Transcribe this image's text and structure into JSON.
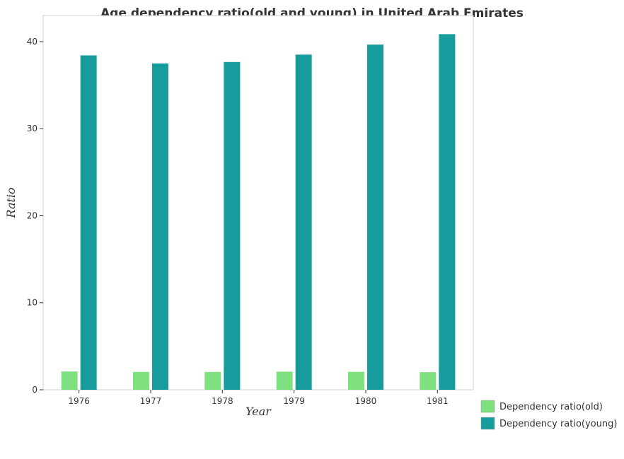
{
  "chart_data": {
    "type": "bar",
    "title": "Age dependency ratio(old and young) in United Arab Emirates",
    "xlabel": "Year",
    "ylabel": "Ratio",
    "categories": [
      "1976",
      "1977",
      "1978",
      "1979",
      "1980",
      "1981"
    ],
    "ylim": [
      0,
      43
    ],
    "yticks": [
      "0",
      "10",
      "20",
      "30",
      "40"
    ],
    "grid": false,
    "legend_position": "bottom-right",
    "series": [
      {
        "name": "Dependency ratio(old)",
        "color": "#7fe07f",
        "values": [
          2.1,
          2.05,
          2.05,
          2.08,
          2.06,
          2.02
        ]
      },
      {
        "name": "Dependency ratio(young)",
        "color": "#169c9c",
        "values": [
          38.42,
          37.5,
          37.66,
          38.51,
          39.66,
          40.86
        ]
      }
    ]
  }
}
